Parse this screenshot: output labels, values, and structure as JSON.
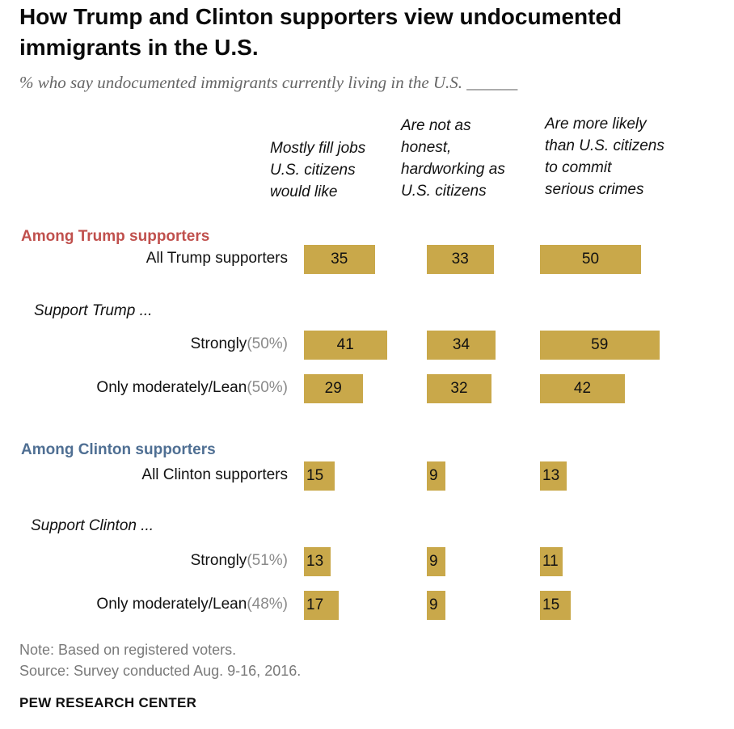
{
  "colors": {
    "bar": "#c9a84a",
    "trump": "#c0504d",
    "clinton": "#4f6f93",
    "muted": "#8a8a8a"
  },
  "chart_data": {
    "type": "bar",
    "orientation": "horizontal",
    "title": "How Trump and Clinton supporters view undocumented immigrants in the U.S.",
    "subtitle": "% who say undocumented immigrants currently living in the U.S. ______",
    "categories": [
      "Mostly fill jobs U.S. citizens would like",
      "Are not as honest, hardworking as U.S. citizens",
      "Are more likely than U.S. citizens to commit serious crimes"
    ],
    "groups": [
      {
        "heading": "Among Trump supporters",
        "rows": [
          {
            "label": "All Trump supporters",
            "share": "",
            "values": [
              35,
              33,
              50
            ]
          }
        ],
        "subheading": "Support Trump ...",
        "subrows": [
          {
            "label": "Strongly",
            "share": "(50%)",
            "values": [
              41,
              34,
              59
            ]
          },
          {
            "label": "Only moderately/Lean",
            "share": "(50%)",
            "values": [
              29,
              32,
              42
            ]
          }
        ]
      },
      {
        "heading": "Among Clinton supporters",
        "rows": [
          {
            "label": "All Clinton supporters",
            "share": "",
            "values": [
              15,
              9,
              13
            ]
          }
        ],
        "subheading": "Support Clinton ...",
        "subrows": [
          {
            "label": "Strongly",
            "share": "(51%)",
            "values": [
              13,
              9,
              11
            ]
          },
          {
            "label": "Only moderately/Lean",
            "share": "(48%)",
            "values": [
              17,
              9,
              15
            ]
          }
        ]
      }
    ]
  },
  "column_headers": [
    [
      "Mostly fill jobs",
      "U.S. citizens",
      "would like"
    ],
    [
      "Are not as",
      "honest,",
      "hardworking as",
      "U.S. citizens"
    ],
    [
      "Are more likely",
      "than U.S. citizens",
      "to commit",
      "serious crimes"
    ]
  ],
  "notes": {
    "note": "Note: Based on registered voters.",
    "source": "Source: Survey conducted Aug. 9-16, 2016.",
    "brand": "PEW RESEARCH CENTER"
  }
}
